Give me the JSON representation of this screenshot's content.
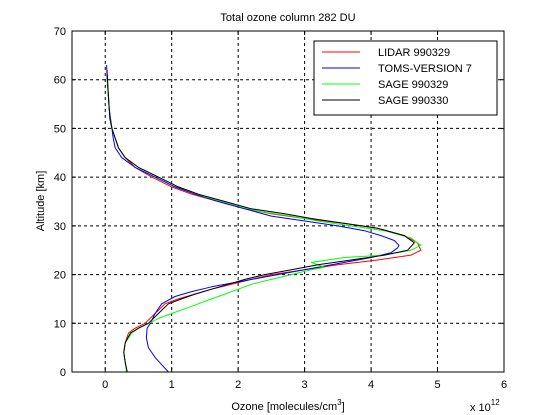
{
  "chart_data": {
    "type": "line",
    "title": "Total ozone column 282 DU",
    "xlabel": "Ozone [molecules/cm",
    "xlabel_sup": "3",
    "xlabel_suffix": "]",
    "ylabel": "Altitude [km]",
    "x_multiplier_base": "x 10",
    "x_multiplier_exp": "12",
    "xlim": [
      -0.5,
      6
    ],
    "ylim": [
      0,
      70
    ],
    "xticks": [
      "0",
      "1",
      "2",
      "3",
      "4",
      "5",
      "6"
    ],
    "yticks": [
      "0",
      "10",
      "20",
      "30",
      "40",
      "50",
      "60",
      "70"
    ],
    "grid": true,
    "legend_position": "top-right",
    "series": [
      {
        "name": "LIDAR 990329",
        "color": "#ff0000",
        "points": [
          [
            0.03,
            62
          ],
          [
            0.04,
            58
          ],
          [
            0.05,
            56
          ],
          [
            0.06,
            54
          ],
          [
            0.08,
            52
          ],
          [
            0.1,
            50
          ],
          [
            0.15,
            48
          ],
          [
            0.2,
            46
          ],
          [
            0.3,
            44
          ],
          [
            0.45,
            42
          ],
          [
            0.7,
            40
          ],
          [
            1.0,
            38
          ],
          [
            1.3,
            36.5
          ],
          [
            1.7,
            35
          ],
          [
            2.1,
            33.5
          ],
          [
            2.5,
            32.5
          ],
          [
            3.0,
            31.5
          ],
          [
            3.6,
            30.5
          ],
          [
            4.1,
            29.5
          ],
          [
            4.5,
            28
          ],
          [
            4.7,
            26.5
          ],
          [
            4.75,
            25
          ],
          [
            4.6,
            24
          ],
          [
            4.1,
            23
          ],
          [
            3.5,
            22
          ],
          [
            3.0,
            21
          ],
          [
            2.5,
            20
          ],
          [
            2.2,
            19
          ],
          [
            1.9,
            18
          ],
          [
            1.6,
            17
          ],
          [
            1.35,
            16
          ],
          [
            1.1,
            15
          ],
          [
            0.9,
            14
          ],
          [
            0.75,
            12
          ],
          [
            0.6,
            10
          ],
          [
            0.45,
            9
          ],
          [
            0.35,
            8
          ],
          [
            0.3,
            6
          ],
          [
            0.28,
            4
          ],
          [
            0.3,
            2
          ],
          [
            0.33,
            0
          ]
        ]
      },
      {
        "name": "TOMS-VERSION 7",
        "color": "#0000ff",
        "points": [
          [
            0.02,
            63
          ],
          [
            0.03,
            60
          ],
          [
            0.04,
            58
          ],
          [
            0.05,
            56
          ],
          [
            0.06,
            54
          ],
          [
            0.08,
            52
          ],
          [
            0.1,
            50
          ],
          [
            0.12,
            48
          ],
          [
            0.15,
            46
          ],
          [
            0.25,
            44
          ],
          [
            0.45,
            42
          ],
          [
            0.75,
            40
          ],
          [
            1.05,
            38
          ],
          [
            1.35,
            36.5
          ],
          [
            1.7,
            35
          ],
          [
            2.1,
            33.5
          ],
          [
            2.5,
            32
          ],
          [
            3.0,
            31
          ],
          [
            3.5,
            30
          ],
          [
            3.9,
            29
          ],
          [
            4.15,
            28
          ],
          [
            4.35,
            27
          ],
          [
            4.42,
            26
          ],
          [
            4.4,
            25.5
          ],
          [
            4.3,
            24.5
          ],
          [
            4.0,
            23.5
          ],
          [
            3.6,
            22.5
          ],
          [
            3.2,
            21.5
          ],
          [
            2.8,
            20.5
          ],
          [
            2.4,
            19.5
          ],
          [
            2.0,
            18.5
          ],
          [
            1.6,
            17.5
          ],
          [
            1.3,
            16.5
          ],
          [
            1.05,
            15.5
          ],
          [
            0.85,
            14
          ],
          [
            0.75,
            12
          ],
          [
            0.68,
            10
          ],
          [
            0.63,
            9
          ],
          [
            0.62,
            7
          ],
          [
            0.65,
            5
          ],
          [
            0.75,
            3
          ],
          [
            0.85,
            1.5
          ],
          [
            0.95,
            0
          ]
        ]
      },
      {
        "name": "SAGE 990329",
        "color": "#00ff00",
        "points": [
          [
            0.03,
            60
          ],
          [
            0.05,
            56
          ],
          [
            0.07,
            52
          ],
          [
            0.1,
            50
          ],
          [
            0.15,
            48
          ],
          [
            0.2,
            46
          ],
          [
            0.3,
            44
          ],
          [
            0.5,
            42
          ],
          [
            0.8,
            40
          ],
          [
            1.1,
            38
          ],
          [
            1.5,
            36
          ],
          [
            1.9,
            34.5
          ],
          [
            2.3,
            33
          ],
          [
            2.8,
            32
          ],
          [
            3.2,
            31
          ],
          [
            3.7,
            30
          ],
          [
            4.2,
            29
          ],
          [
            4.6,
            27.5
          ],
          [
            4.75,
            26
          ],
          [
            4.6,
            25
          ],
          [
            4.2,
            24
          ],
          [
            3.6,
            23.5
          ],
          [
            3.1,
            22.5
          ],
          [
            3.3,
            21.5
          ],
          [
            3.1,
            21
          ],
          [
            2.8,
            20
          ],
          [
            2.5,
            19
          ],
          [
            2.2,
            18
          ],
          [
            2.0,
            17
          ],
          [
            1.8,
            16
          ],
          [
            1.6,
            15
          ],
          [
            1.4,
            14
          ],
          [
            1.2,
            13
          ],
          [
            1.0,
            12
          ],
          [
            0.8,
            11
          ],
          [
            0.65,
            10
          ],
          [
            0.5,
            9
          ],
          [
            0.4,
            8
          ],
          [
            0.3,
            6
          ],
          [
            0.28,
            4
          ],
          [
            0.3,
            2
          ],
          [
            0.32,
            0
          ]
        ]
      },
      {
        "name": "SAGE 990330",
        "color": "#000000",
        "points": [
          [
            0.03,
            61
          ],
          [
            0.05,
            56
          ],
          [
            0.07,
            52
          ],
          [
            0.1,
            50
          ],
          [
            0.15,
            48
          ],
          [
            0.2,
            46
          ],
          [
            0.3,
            44
          ],
          [
            0.5,
            42
          ],
          [
            0.8,
            40
          ],
          [
            1.1,
            38
          ],
          [
            1.4,
            36.5
          ],
          [
            1.8,
            35
          ],
          [
            2.2,
            33.5
          ],
          [
            2.7,
            32.5
          ],
          [
            3.1,
            31.5
          ],
          [
            3.6,
            30.5
          ],
          [
            4.1,
            29.5
          ],
          [
            4.5,
            28
          ],
          [
            4.65,
            26.5
          ],
          [
            4.55,
            25
          ],
          [
            4.2,
            24
          ],
          [
            3.7,
            23
          ],
          [
            3.2,
            22
          ],
          [
            2.8,
            21
          ],
          [
            2.4,
            20
          ],
          [
            2.1,
            19
          ],
          [
            1.85,
            18
          ],
          [
            1.6,
            17
          ],
          [
            1.35,
            16
          ],
          [
            1.15,
            15
          ],
          [
            0.95,
            14
          ],
          [
            0.8,
            12
          ],
          [
            0.65,
            10
          ],
          [
            0.5,
            9
          ],
          [
            0.38,
            8
          ],
          [
            0.3,
            6
          ],
          [
            0.28,
            4
          ],
          [
            0.3,
            2
          ],
          [
            0.33,
            0
          ]
        ]
      }
    ]
  }
}
